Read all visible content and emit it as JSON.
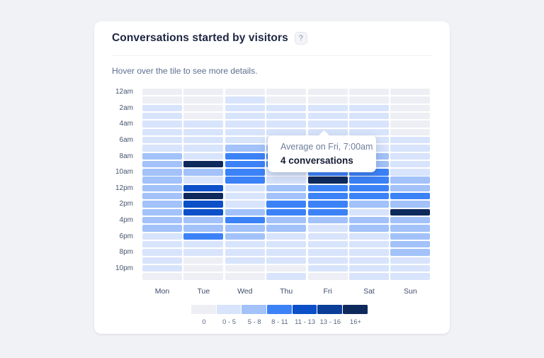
{
  "page": {
    "background": "#f1f2f6"
  },
  "card": {
    "title": "Conversations started by visitors",
    "help_icon": "?",
    "subtitle": "Hover over the tile to see more details."
  },
  "tooltip": {
    "title": "Average on Fri, 7:00am",
    "value": "4 conversations",
    "anchor_day": "Fri",
    "anchor_hour": "7:00am"
  },
  "chart_data": {
    "type": "heatmap",
    "title": "Conversations started by visitors",
    "x_categories": [
      "Mon",
      "Tue",
      "Wed",
      "Thu",
      "Fri",
      "Sat",
      "Sun"
    ],
    "y_categories": [
      "12am",
      "1am",
      "2am",
      "3am",
      "4am",
      "5am",
      "6am",
      "7am",
      "8am",
      "9am",
      "10am",
      "11am",
      "12pm",
      "1pm",
      "2pm",
      "3pm",
      "4pm",
      "5pm",
      "6pm",
      "7pm",
      "8pm",
      "9pm",
      "10pm",
      "11pm"
    ],
    "y_tick_labels": [
      "12am",
      "2am",
      "4am",
      "6am",
      "8am",
      "10am",
      "12pm",
      "2pm",
      "4pm",
      "6pm",
      "8pm",
      "10pm"
    ],
    "legend_position": "bottom",
    "buckets": [
      {
        "label": "0",
        "color": "#edeff5"
      },
      {
        "label": "0 - 5",
        "color": "#d8e4fb"
      },
      {
        "label": "5 - 8",
        "color": "#a2c2f9"
      },
      {
        "label": "8 - 11",
        "color": "#3c82f7"
      },
      {
        "label": "11 - 13",
        "color": "#0b50c8"
      },
      {
        "label": "13 - 16",
        "color": "#0a3e99"
      },
      {
        "label": "16+",
        "color": "#0e2a5c"
      }
    ],
    "grid_bucket_index_by_hour_then_day": [
      [
        0,
        0,
        0,
        0,
        0,
        0,
        0
      ],
      [
        0,
        0,
        1,
        0,
        0,
        0,
        0
      ],
      [
        1,
        0,
        1,
        1,
        1,
        1,
        0
      ],
      [
        1,
        0,
        1,
        1,
        1,
        1,
        0
      ],
      [
        1,
        1,
        1,
        1,
        1,
        1,
        0
      ],
      [
        1,
        1,
        1,
        1,
        1,
        1,
        0
      ],
      [
        1,
        1,
        1,
        1,
        1,
        1,
        1
      ],
      [
        1,
        1,
        2,
        2,
        1,
        1,
        1
      ],
      [
        2,
        1,
        3,
        3,
        2,
        2,
        1
      ],
      [
        2,
        6,
        3,
        3,
        2,
        2,
        1
      ],
      [
        2,
        2,
        3,
        1,
        3,
        3,
        1
      ],
      [
        2,
        1,
        3,
        1,
        6,
        3,
        2
      ],
      [
        2,
        4,
        1,
        2,
        3,
        3,
        2
      ],
      [
        2,
        6,
        1,
        2,
        3,
        3,
        3
      ],
      [
        2,
        4,
        1,
        3,
        3,
        2,
        2
      ],
      [
        2,
        4,
        2,
        3,
        3,
        1,
        6
      ],
      [
        2,
        2,
        3,
        2,
        2,
        2,
        2
      ],
      [
        2,
        2,
        2,
        2,
        1,
        2,
        2
      ],
      [
        1,
        3,
        2,
        1,
        1,
        1,
        2
      ],
      [
        1,
        1,
        1,
        1,
        1,
        1,
        2
      ],
      [
        1,
        1,
        1,
        1,
        1,
        1,
        2
      ],
      [
        1,
        0,
        1,
        1,
        1,
        1,
        1
      ],
      [
        1,
        0,
        0,
        0,
        1,
        1,
        1
      ],
      [
        0,
        0,
        0,
        1,
        0,
        1,
        1
      ]
    ],
    "hovered_cell": {
      "day": "Fri",
      "hour": "7:00am",
      "value": "4 conversations"
    }
  }
}
